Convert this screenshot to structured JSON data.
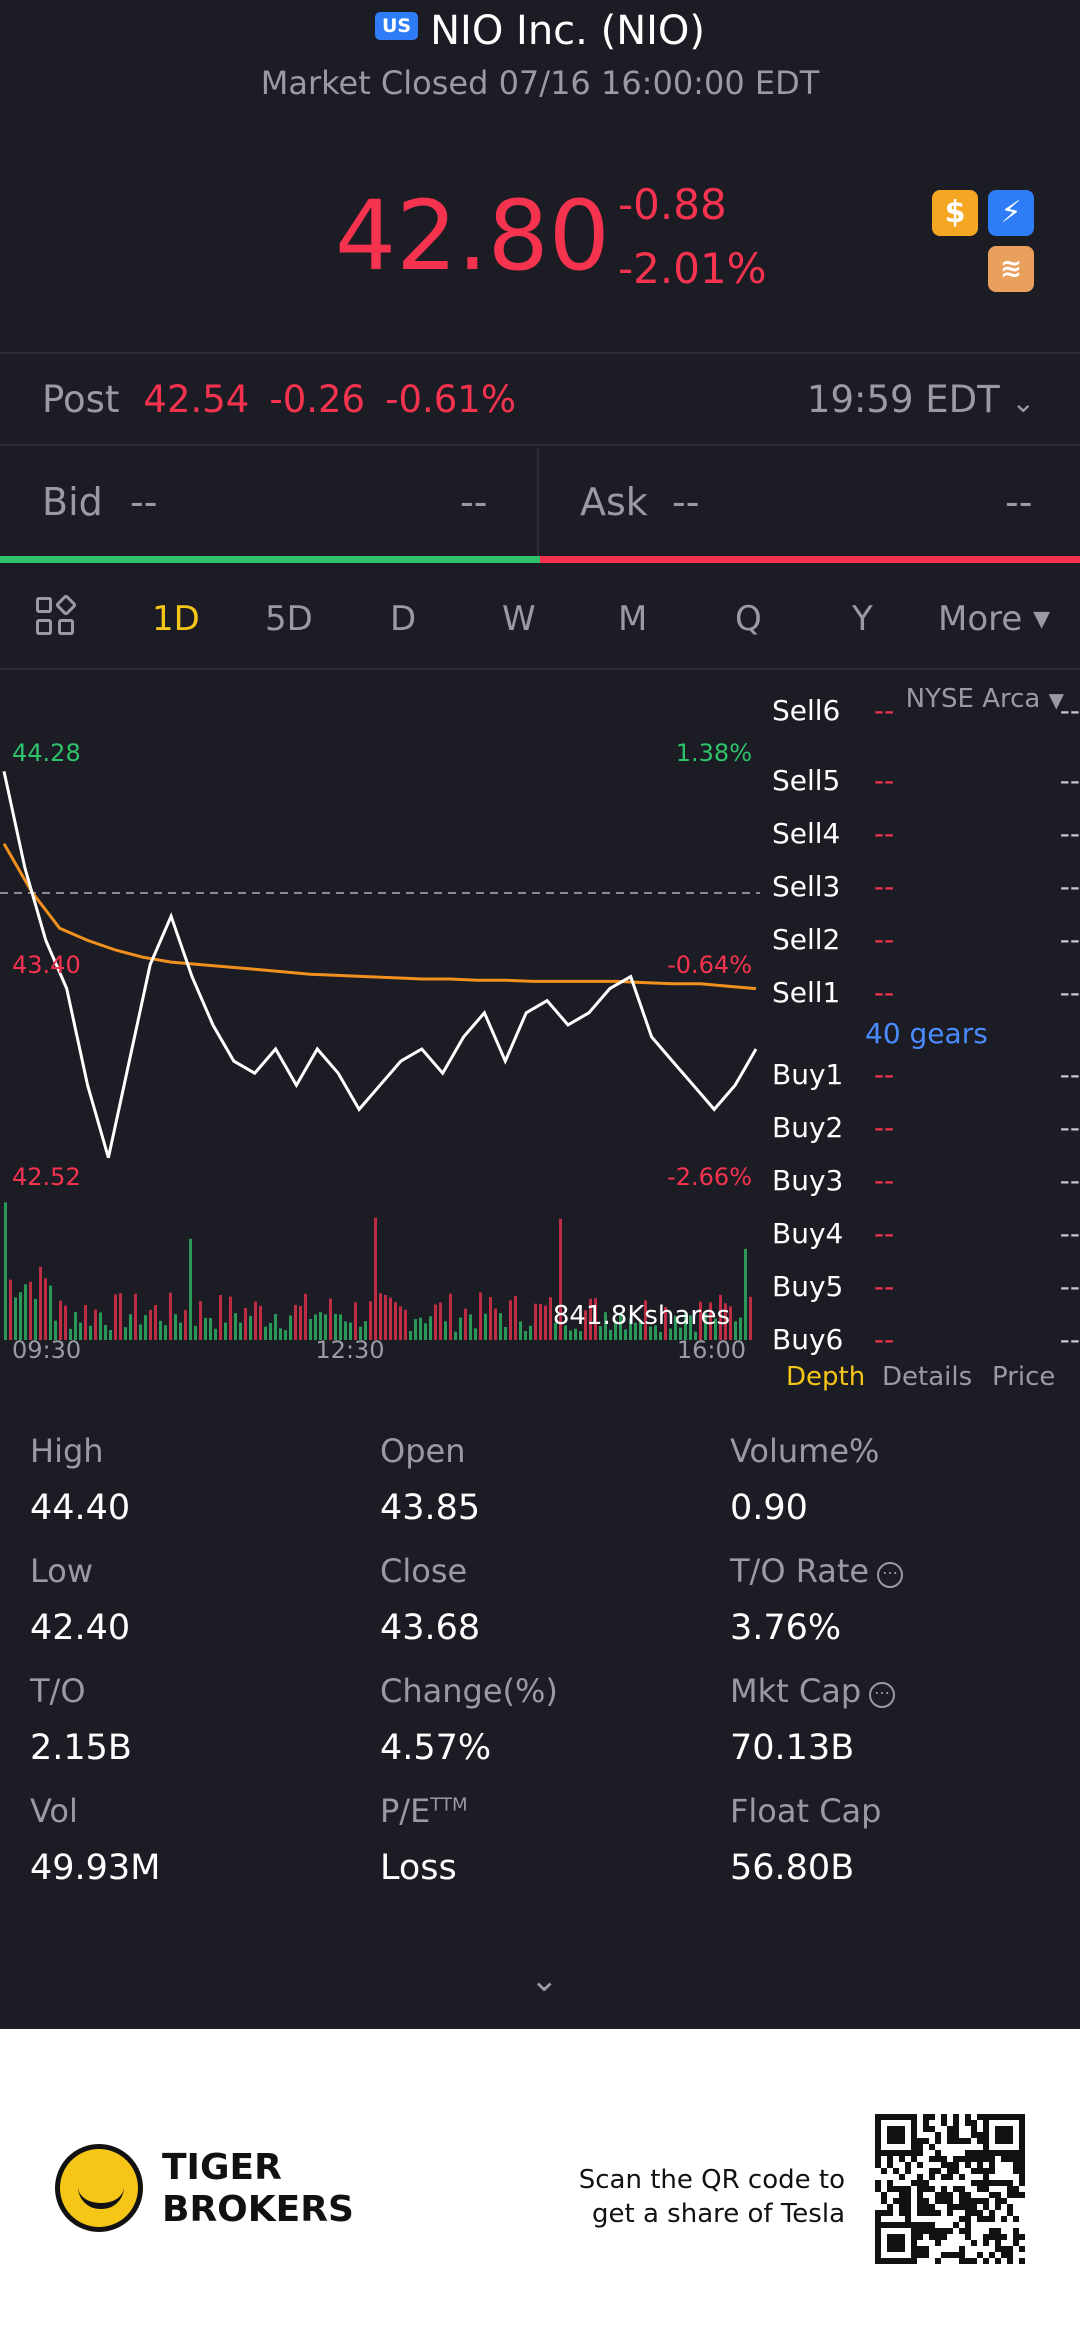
{
  "header": {
    "market_badge": "US",
    "title": "NIO Inc. (NIO)",
    "status": "Market Closed 07/16 16:00:00 EDT",
    "price": "42.80",
    "change": "-0.88",
    "change_pct": "-2.01%"
  },
  "post": {
    "label": "Post",
    "price": "42.54",
    "change": "-0.26",
    "change_pct": "-0.61%",
    "time": "19:59 EDT"
  },
  "bidask": {
    "bid_label": "Bid",
    "bid_price": "--",
    "bid_size": "--",
    "ask_label": "Ask",
    "ask_price": "--",
    "ask_size": "--"
  },
  "tabs": [
    "1D",
    "5D",
    "D",
    "W",
    "M",
    "Q",
    "Y"
  ],
  "more_label": "More",
  "chart": {
    "exchange": "NYSE Arca",
    "y_high": "44.28",
    "y_mid": "43.40",
    "y_low": "42.52",
    "pct_high": "1.38%",
    "pct_mid": "-0.64%",
    "pct_low": "-2.66%",
    "volume_label": "841.8Kshares",
    "x_labels": [
      "09:30",
      "12:30",
      "16:00"
    ]
  },
  "chart_data": {
    "type": "line",
    "title": "",
    "x_range": [
      "09:30",
      "16:00"
    ],
    "ylim": [
      42.52,
      44.28
    ],
    "prev_close": 43.68,
    "series": [
      {
        "values": [
          44.2,
          43.8,
          43.5,
          43.3,
          42.9,
          42.6,
          43.0,
          43.4,
          43.6,
          43.35,
          43.15,
          43.0,
          42.95,
          43.05,
          42.9,
          43.05,
          42.95,
          42.8,
          42.9,
          43.0,
          43.05,
          42.95,
          43.1,
          43.2,
          43.0,
          43.2,
          43.25,
          43.15,
          43.2,
          43.3,
          43.35,
          43.1,
          43.0,
          42.9,
          42.8,
          42.9,
          43.05
        ]
      },
      {
        "values": [
          43.9,
          43.7,
          43.55,
          43.5,
          43.46,
          43.43,
          43.41,
          43.4,
          43.39,
          43.38,
          43.37,
          43.36,
          43.355,
          43.35,
          43.345,
          43.34,
          43.34,
          43.335,
          43.335,
          43.33,
          43.33,
          43.33,
          43.33,
          43.325,
          43.32,
          43.32,
          43.31,
          43.3
        ]
      }
    ]
  },
  "depth": {
    "sells": [
      "Sell6",
      "Sell5",
      "Sell4",
      "Sell3",
      "Sell2",
      "Sell1"
    ],
    "buys": [
      "Buy1",
      "Buy2",
      "Buy3",
      "Buy4",
      "Buy5",
      "Buy6"
    ],
    "empty": "--",
    "gears": "40 gears",
    "tabs": [
      "Depth",
      "Details",
      "Price"
    ]
  },
  "stats": [
    {
      "k": "High",
      "v": "44.40"
    },
    {
      "k": "Open",
      "v": "43.85"
    },
    {
      "k": "Volume%",
      "v": "0.90"
    },
    {
      "k": "Low",
      "v": "42.40"
    },
    {
      "k": "Close",
      "v": "43.68"
    },
    {
      "k": "T/O Rate",
      "v": "3.76%"
    },
    {
      "k": "T/O",
      "v": "2.15B"
    },
    {
      "k": "Change(%)",
      "v": "4.57%"
    },
    {
      "k": "Mkt Cap",
      "v": "70.13B"
    },
    {
      "k": "Vol",
      "v": "49.93M"
    },
    {
      "k": "P/E",
      "v": "Loss"
    },
    {
      "k": "Float Cap",
      "v": "56.80B"
    }
  ],
  "pe_sup": "TTM",
  "footer": {
    "brand_line1": "TIGER",
    "brand_line2": "BROKERS",
    "promo_line1": "Scan the QR code to",
    "promo_line2": "get a share of Tesla"
  },
  "colors": {
    "up": "#2ec26a",
    "down": "#f5334f",
    "accent": "#f5c518",
    "link": "#4a8cff",
    "avg_line": "#f0901e"
  }
}
